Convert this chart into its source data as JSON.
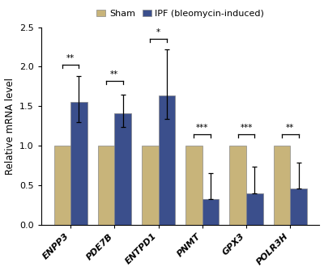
{
  "categories": [
    "ENPP3",
    "PDE7B",
    "ENTPD1",
    "PNMT",
    "GPX3",
    "POLR3H"
  ],
  "sham_values": [
    1.0,
    1.0,
    1.0,
    1.0,
    1.0,
    1.0
  ],
  "ipf_values": [
    1.55,
    1.41,
    1.64,
    0.32,
    0.4,
    0.46
  ],
  "sham_err_up": [
    0.0,
    0.0,
    0.0,
    0.0,
    0.0,
    0.0
  ],
  "sham_err_lo": [
    0.0,
    0.0,
    0.0,
    0.0,
    0.0,
    0.0
  ],
  "ipf_errors_upper": [
    0.33,
    0.24,
    0.58,
    0.33,
    0.33,
    0.33
  ],
  "ipf_errors_lower": [
    0.25,
    0.17,
    0.3,
    0.0,
    0.0,
    0.0
  ],
  "sham_color": "#C8B47A",
  "ipf_color": "#3B4F8C",
  "sham_label": "Sham",
  "ipf_label": "IPF (bleomycin-induced)",
  "ylabel": "Relative mRNA level",
  "ylim": [
    0,
    2.5
  ],
  "yticks": [
    0.0,
    0.5,
    1.0,
    1.5,
    2.0,
    2.5
  ],
  "sig_info": [
    {
      "idx": 0,
      "stars": "**",
      "y": 2.02
    },
    {
      "idx": 1,
      "stars": "**",
      "y": 1.82
    },
    {
      "idx": 2,
      "stars": "*",
      "y": 2.35
    },
    {
      "idx": 3,
      "stars": "***",
      "y": 1.14
    },
    {
      "idx": 4,
      "stars": "***",
      "y": 1.14
    },
    {
      "idx": 5,
      "stars": "**",
      "y": 1.14
    }
  ],
  "bar_width": 0.38,
  "figsize": [
    4.0,
    3.35
  ],
  "dpi": 100
}
